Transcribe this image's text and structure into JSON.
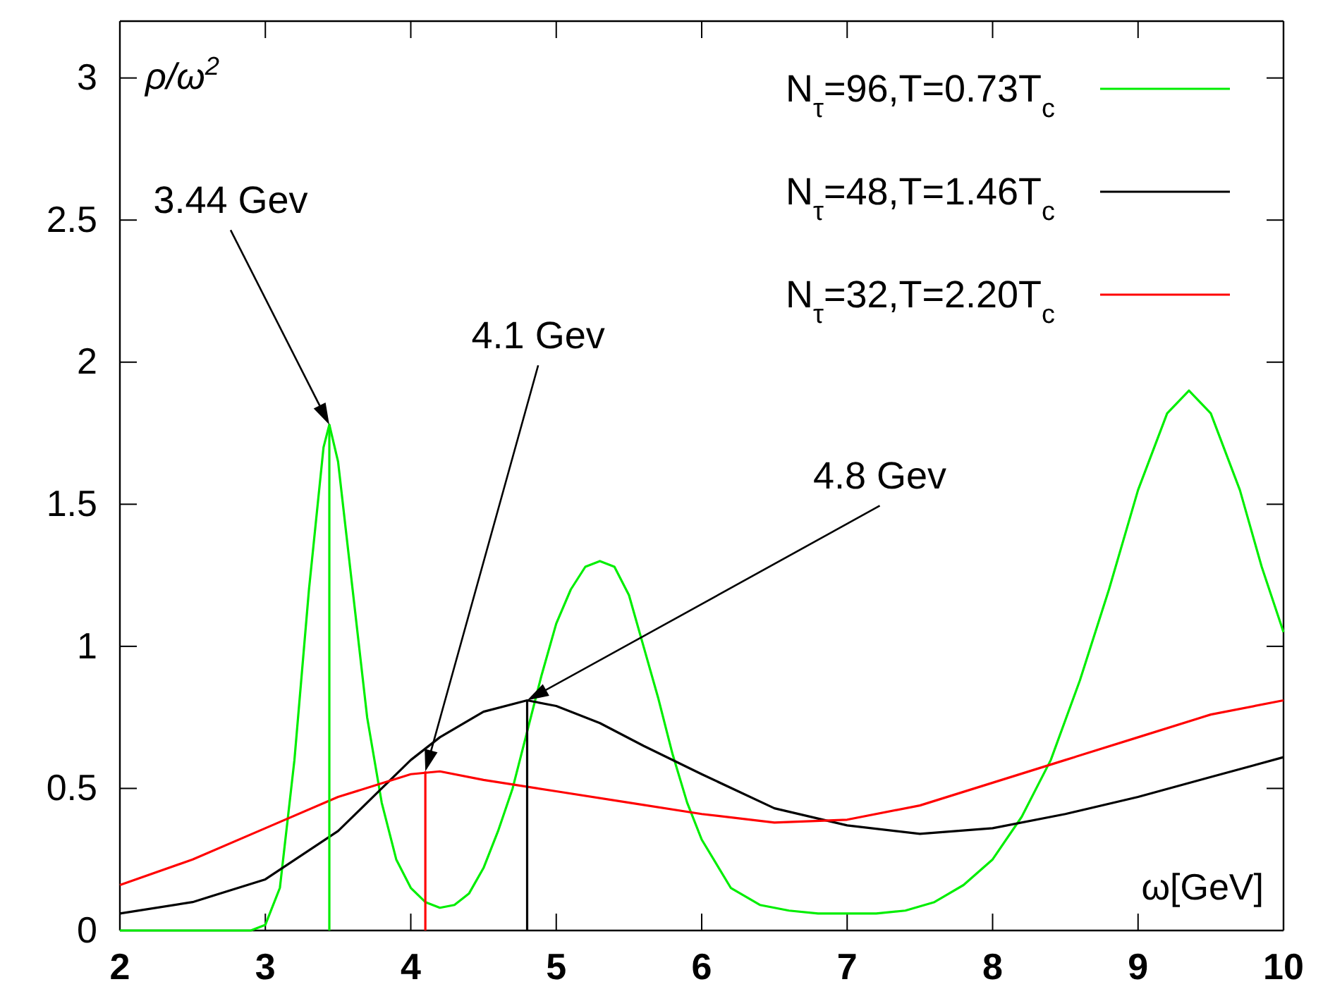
{
  "chart_data": {
    "type": "line",
    "xlabel": "ω[GeV]",
    "ylabel": "ρ/ω$^{2}$",
    "xlim": [
      2,
      10
    ],
    "ylim": [
      0,
      3.2
    ],
    "xticks": [
      2,
      3,
      4,
      5,
      6,
      7,
      8,
      9,
      10
    ],
    "yticks": [
      0,
      0.5,
      1,
      1.5,
      2,
      2.5,
      3
    ],
    "grid": false,
    "legend": "top right",
    "marker": "none",
    "line_style": "solid",
    "series": [
      {
        "name": "N$_{τ}$=96,T=0.73T$_{c}$",
        "color": "#00ee00",
        "x": [
          2,
          2.9,
          3.0,
          3.1,
          3.2,
          3.3,
          3.4,
          3.44,
          3.5,
          3.6,
          3.7,
          3.8,
          3.9,
          4.0,
          4.1,
          4.2,
          4.3,
          4.4,
          4.5,
          4.6,
          4.7,
          4.8,
          4.9,
          5.0,
          5.1,
          5.2,
          5.3,
          5.4,
          5.5,
          5.6,
          5.7,
          5.8,
          5.9,
          6.0,
          6.2,
          6.4,
          6.6,
          6.8,
          7.0,
          7.2,
          7.4,
          7.6,
          7.8,
          8.0,
          8.2,
          8.4,
          8.6,
          8.8,
          9.0,
          9.2,
          9.35,
          9.5,
          9.7,
          9.85,
          10
        ],
        "values": [
          0,
          0,
          0.02,
          0.15,
          0.6,
          1.2,
          1.7,
          1.78,
          1.65,
          1.2,
          0.75,
          0.45,
          0.25,
          0.15,
          0.1,
          0.08,
          0.09,
          0.13,
          0.22,
          0.35,
          0.5,
          0.7,
          0.9,
          1.08,
          1.2,
          1.28,
          1.3,
          1.28,
          1.18,
          1.0,
          0.82,
          0.62,
          0.45,
          0.32,
          0.15,
          0.09,
          0.07,
          0.06,
          0.06,
          0.06,
          0.07,
          0.1,
          0.16,
          0.25,
          0.4,
          0.6,
          0.88,
          1.2,
          1.55,
          1.82,
          1.9,
          1.82,
          1.55,
          1.28,
          1.05
        ]
      },
      {
        "name": "N$_{τ}$=48,T=1.46T$_{c}$",
        "color": "#000000",
        "x": [
          2,
          2.5,
          3,
          3.5,
          3.8,
          4,
          4.2,
          4.5,
          4.8,
          5,
          5.3,
          5.6,
          6,
          6.5,
          7,
          7.5,
          8,
          8.5,
          9,
          9.5,
          10
        ],
        "values": [
          0.06,
          0.1,
          0.18,
          0.35,
          0.5,
          0.6,
          0.68,
          0.77,
          0.81,
          0.79,
          0.73,
          0.65,
          0.55,
          0.43,
          0.37,
          0.34,
          0.36,
          0.41,
          0.47,
          0.54,
          0.61
        ]
      },
      {
        "name": "N$_{τ}$=32,T=2.20T$_{c}$",
        "color": "#ff0000",
        "x": [
          2,
          2.5,
          3,
          3.5,
          4,
          4.2,
          4.5,
          5,
          5.5,
          6,
          6.5,
          7,
          7.5,
          8,
          8.5,
          9,
          9.5,
          10
        ],
        "values": [
          0.16,
          0.25,
          0.36,
          0.47,
          0.55,
          0.56,
          0.53,
          0.49,
          0.45,
          0.41,
          0.38,
          0.39,
          0.44,
          0.52,
          0.6,
          0.68,
          0.76,
          0.81
        ]
      },
      {
        "color": "#00ee00",
        "x": [
          3.44,
          3.44
        ],
        "values": [
          0,
          1.78
        ]
      },
      {
        "color": "#ff0000",
        "x": [
          4.1,
          4.1
        ],
        "values": [
          0,
          0.56
        ]
      },
      {
        "color": "#000000",
        "x": [
          4.8,
          4.8
        ],
        "values": [
          0,
          0.81
        ]
      }
    ],
    "annotations": [
      {
        "text": "3.44 Gev",
        "x": 3.44,
        "y": 1.78
      },
      {
        "text": "4.1 Gev",
        "x": 4.1,
        "y": 0.56
      },
      {
        "text": "4.8 Gev",
        "x": 4.8,
        "y": 0.81
      }
    ]
  }
}
